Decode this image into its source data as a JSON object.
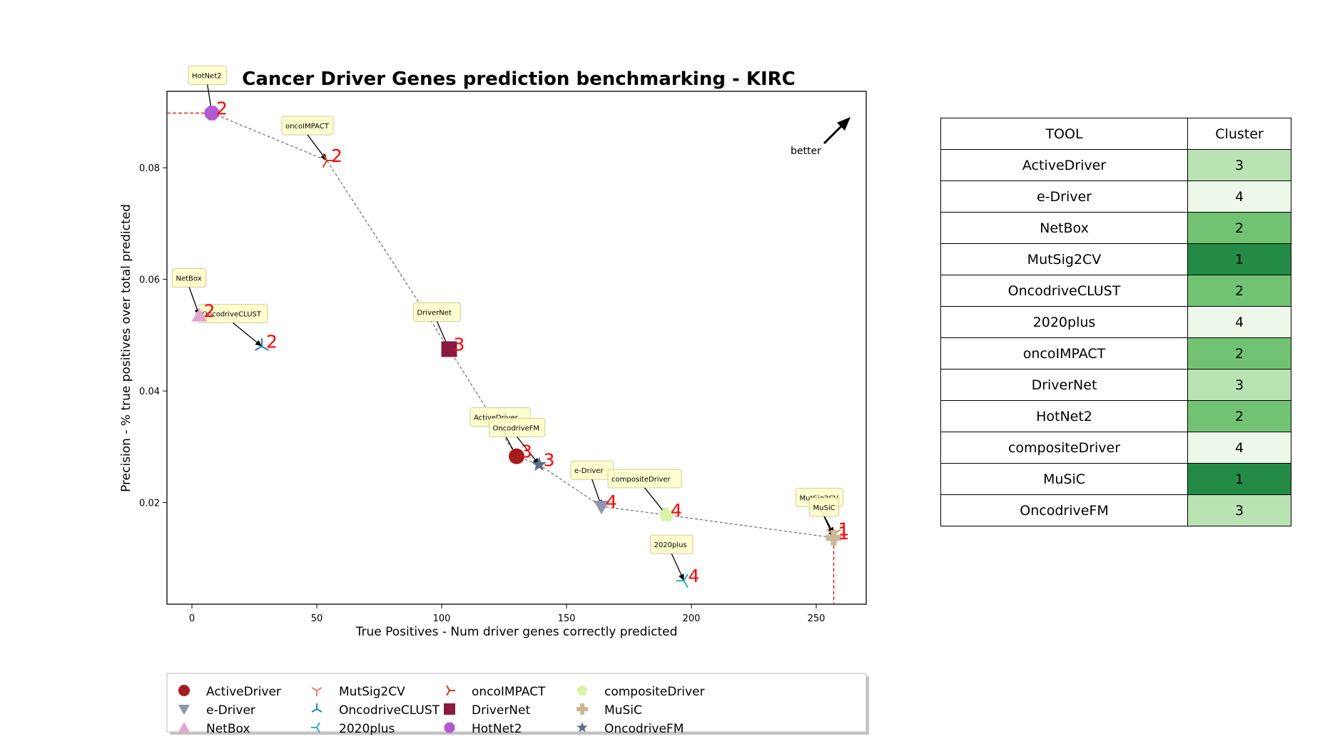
{
  "chart_data": {
    "type": "scatter",
    "title": "Cancer Driver Genes prediction benchmarking - KIRC",
    "xlabel": "True Positives - Num driver genes correctly predicted",
    "ylabel": "Precision - % true positives over total predicted",
    "xlim": [
      -10,
      270
    ],
    "ylim": [
      0.0018,
      0.0937
    ],
    "xticks": [
      0,
      50,
      100,
      150,
      200,
      250
    ],
    "yticks": [
      0.02,
      0.04,
      0.06,
      0.08
    ],
    "ytick_labels": [
      "0.02",
      "0.04",
      "0.06",
      "0.08"
    ],
    "better_label": "better",
    "grid": false,
    "legend_placement": "bottom",
    "points": [
      {
        "name": "ActiveDriver",
        "x": 130,
        "y": 0.0283,
        "cluster": "3",
        "color": "#a61c1c",
        "marker": "circle"
      },
      {
        "name": "e-Driver",
        "x": 164,
        "y": 0.0193,
        "cluster": "4",
        "color": "#8e96ad",
        "marker": "triangle-down"
      },
      {
        "name": "NetBox",
        "x": 3,
        "y": 0.0535,
        "cluster": "2",
        "color": "#e3a6cf",
        "marker": "triangle-up"
      },
      {
        "name": "MutSig2CV",
        "x": 257,
        "y": 0.0144,
        "cluster": "1",
        "color": "#f07a6a",
        "marker": "tri-down"
      },
      {
        "name": "OncodriveCLUST",
        "x": 28,
        "y": 0.048,
        "cluster": "2",
        "color": "#2a78c8",
        "marker": "tri-up"
      },
      {
        "name": "2020plus",
        "x": 197,
        "y": 0.006,
        "cluster": "4",
        "color": "#2ab0c8",
        "marker": "tri-left"
      },
      {
        "name": "oncoIMPACT",
        "x": 54,
        "y": 0.0813,
        "cluster": "2",
        "color": "#d03a1c",
        "marker": "tri-right"
      },
      {
        "name": "DriverNet",
        "x": 103,
        "y": 0.0475,
        "cluster": "3",
        "color": "#8b1a43",
        "marker": "square"
      },
      {
        "name": "HotNet2",
        "x": 8,
        "y": 0.0898,
        "cluster": "2",
        "color": "#b45ad0",
        "marker": "octagon"
      },
      {
        "name": "compositeDriver",
        "x": 190,
        "y": 0.0178,
        "cluster": "4",
        "color": "#d9f2a8",
        "marker": "pentagon"
      },
      {
        "name": "MuSiC",
        "x": 257,
        "y": 0.0137,
        "cluster": "1",
        "color": "#cbb898",
        "marker": "plus"
      },
      {
        "name": "OncodriveFM",
        "x": 139,
        "y": 0.0268,
        "cluster": "3",
        "color": "#5a6f88",
        "marker": "star"
      }
    ],
    "pareto_front": [
      "HotNet2",
      "oncoIMPACT",
      "DriverNet",
      "ActiveDriver",
      "OncodriveFM",
      "e-Driver",
      "compositeDriver",
      "MuSiC"
    ],
    "legend_order": [
      "ActiveDriver",
      "e-Driver",
      "NetBox",
      "MutSig2CV",
      "OncodriveCLUST",
      "2020plus",
      "oncoIMPACT",
      "DriverNet",
      "HotNet2",
      "compositeDriver",
      "MuSiC",
      "OncodriveFM"
    ]
  },
  "table": {
    "headers": [
      "TOOL",
      "Cluster"
    ],
    "rows": [
      {
        "tool": "ActiveDriver",
        "cluster": "3",
        "color": "#b9e3b2"
      },
      {
        "tool": "e-Driver",
        "cluster": "4",
        "color": "#edf7ea"
      },
      {
        "tool": "NetBox",
        "cluster": "2",
        "color": "#71c373"
      },
      {
        "tool": "MutSig2CV",
        "cluster": "1",
        "color": "#238b45"
      },
      {
        "tool": "OncodriveCLUST",
        "cluster": "2",
        "color": "#71c373"
      },
      {
        "tool": "2020plus",
        "cluster": "4",
        "color": "#edf7ea"
      },
      {
        "tool": "oncoIMPACT",
        "cluster": "2",
        "color": "#71c373"
      },
      {
        "tool": "DriverNet",
        "cluster": "3",
        "color": "#b9e3b2"
      },
      {
        "tool": "HotNet2",
        "cluster": "2",
        "color": "#71c373"
      },
      {
        "tool": "compositeDriver",
        "cluster": "4",
        "color": "#edf7ea"
      },
      {
        "tool": "MuSiC",
        "cluster": "1",
        "color": "#238b45"
      },
      {
        "tool": "OncodriveFM",
        "cluster": "3",
        "color": "#b9e3b2"
      }
    ]
  }
}
